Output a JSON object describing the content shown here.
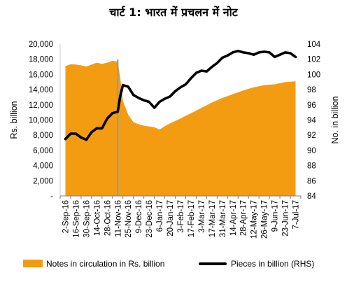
{
  "title": "चार्ट 1: भारत में प्रचलन में नोट",
  "chart_data": {
    "type": "area",
    "title": "चार्ट 1: भारत में प्रचलन में नोट",
    "x_tick_labels": [
      "2-Sep-16",
      "16-Sep-16",
      "30-Sep-16",
      "14-Oct-16",
      "28-Oct-16",
      "11-Nov-16",
      "25-Nov-16",
      "9-Dec-16",
      "23-Dec-16",
      "6-Jan-17",
      "20-Jan-17",
      "3-Feb-17",
      "17-Feb-17",
      "3-Mar-17",
      "17-Mar-17",
      "31-Mar-17",
      "14-Apr-17",
      "28-Apr-17",
      "12-May-17",
      "26-May-17",
      "9-Jun-17",
      "23-Jun-17",
      "7-Jul-17"
    ],
    "y_left": {
      "label": "Rs. billion",
      "ylim": [
        0,
        20000
      ],
      "ticks": [
        "-",
        "2,000",
        "4,000",
        "6,000",
        "8,000",
        "10,000",
        "12,000",
        "14,000",
        "16,000",
        "18,000",
        "20,000"
      ]
    },
    "y_right": {
      "label": "No. in billion",
      "ylim": [
        84,
        104
      ],
      "ticks": [
        "84",
        "86",
        "88",
        "90",
        "92",
        "94",
        "96",
        "98",
        "100",
        "102",
        "104"
      ]
    },
    "vertical_marker": {
      "x_index": 5.0,
      "color": "#7F9FBF"
    },
    "series": [
      {
        "name": "Notes in circulation in Rs. billion",
        "type": "area",
        "axis": "left",
        "color": "#F39C12",
        "x": [
          0,
          0.5,
          1,
          1.5,
          2,
          2.5,
          3,
          3.5,
          4,
          4.5,
          5,
          5.25,
          5.5,
          6,
          6.5,
          7,
          7.5,
          8,
          8.5,
          9,
          9.5,
          10,
          11,
          12,
          13,
          14,
          15,
          16,
          17,
          18,
          19,
          20,
          21,
          22
        ],
        "values": [
          17100,
          17350,
          17300,
          17200,
          17050,
          17300,
          17550,
          17400,
          17550,
          17800,
          17700,
          15500,
          12500,
          10700,
          9700,
          9450,
          9250,
          9150,
          9050,
          8750,
          9200,
          9550,
          10200,
          10900,
          11600,
          12300,
          12900,
          13400,
          13900,
          14300,
          14600,
          14700,
          15000,
          15100
        ]
      },
      {
        "name": "Pieces in billion (RHS)",
        "type": "line",
        "axis": "right",
        "color": "#000000",
        "x": [
          0,
          0.5,
          1,
          1.5,
          2,
          2.5,
          3,
          3.5,
          4,
          4.5,
          5,
          5.25,
          5.5,
          6,
          6.5,
          7,
          7.5,
          8,
          8.5,
          9,
          9.5,
          10,
          10.5,
          11,
          11.5,
          12,
          12.5,
          13,
          13.5,
          14,
          14.5,
          15,
          15.5,
          16,
          16.5,
          17,
          17.5,
          18,
          18.5,
          19,
          19.5,
          20,
          20.5,
          21,
          21.5,
          22
        ],
        "values": [
          91.5,
          92.2,
          92.2,
          91.7,
          91.4,
          92.4,
          92.9,
          92.9,
          94.2,
          94.9,
          95.1,
          97.2,
          98.6,
          98.4,
          97.3,
          96.9,
          96.6,
          96.4,
          95.6,
          96.4,
          96.8,
          97.1,
          97.8,
          98.3,
          98.7,
          99.5,
          100.2,
          100.5,
          100.4,
          101.0,
          101.5,
          102.2,
          102.5,
          102.9,
          103.1,
          102.9,
          102.8,
          102.6,
          102.9,
          103.0,
          102.9,
          102.3,
          102.6,
          102.9,
          102.8,
          102.3
        ]
      }
    ],
    "legend": {
      "placement": "bottom"
    }
  }
}
